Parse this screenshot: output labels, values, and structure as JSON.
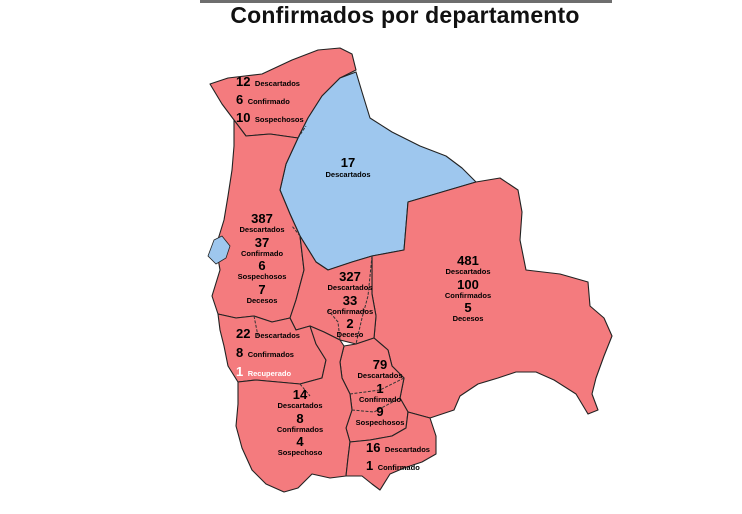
{
  "title": "Confirmados por departamento",
  "colors": {
    "confirmed": "#f47b7e",
    "no_confirmed": "#9ec7ee"
  },
  "departments": {
    "pando": {
      "descartados": "12",
      "descartados_label": "Descartados",
      "confirmado": "6",
      "confirmado_label": "Confirmado",
      "sospechosos": "10",
      "sospechosos_label": "Sospechosos"
    },
    "beni": {
      "descartados": "17",
      "descartados_label": "Descartados"
    },
    "la_paz": {
      "descartados": "387",
      "descartados_label": "Descartados",
      "confirmado": "37",
      "confirmado_label": "Confirmado",
      "sospechosos": "6",
      "sospechosos_label": "Sospechosos",
      "decesos": "7",
      "decesos_label": "Decesos"
    },
    "santa_cruz": {
      "descartados": "481",
      "descartados_label": "Descartados",
      "confirmados": "100",
      "confirmados_label": "Confirmados",
      "decesos": "5",
      "decesos_label": "Decesos"
    },
    "cochabamba": {
      "descartados": "327",
      "descartados_label": "Descartados",
      "confirmados": "33",
      "confirmados_label": "Confirmados",
      "deceso": "2",
      "deceso_label": "Deceso"
    },
    "oruro": {
      "descartados": "22",
      "descartados_label": "Descartados",
      "confirmados": "8",
      "confirmados_label": "Confirmados",
      "recuperado": "1",
      "recuperado_label": "Recuperado"
    },
    "chuquisaca": {
      "descartados": "79",
      "descartados_label": "Descartados",
      "confirmado": "1",
      "confirmado_label": "Confirmado",
      "sospechosos": "9",
      "sospechosos_label": "Sospechosos"
    },
    "potosi": {
      "descartados": "14",
      "descartados_label": "Descartados",
      "confirmados": "8",
      "confirmados_label": "Confirmados",
      "sospechoso": "4",
      "sospechoso_label": "Sospechoso"
    },
    "tarija": {
      "descartados": "16",
      "descartados_label": "Descartados",
      "confirmado": "1",
      "confirmado_label": "Confirmado"
    }
  }
}
